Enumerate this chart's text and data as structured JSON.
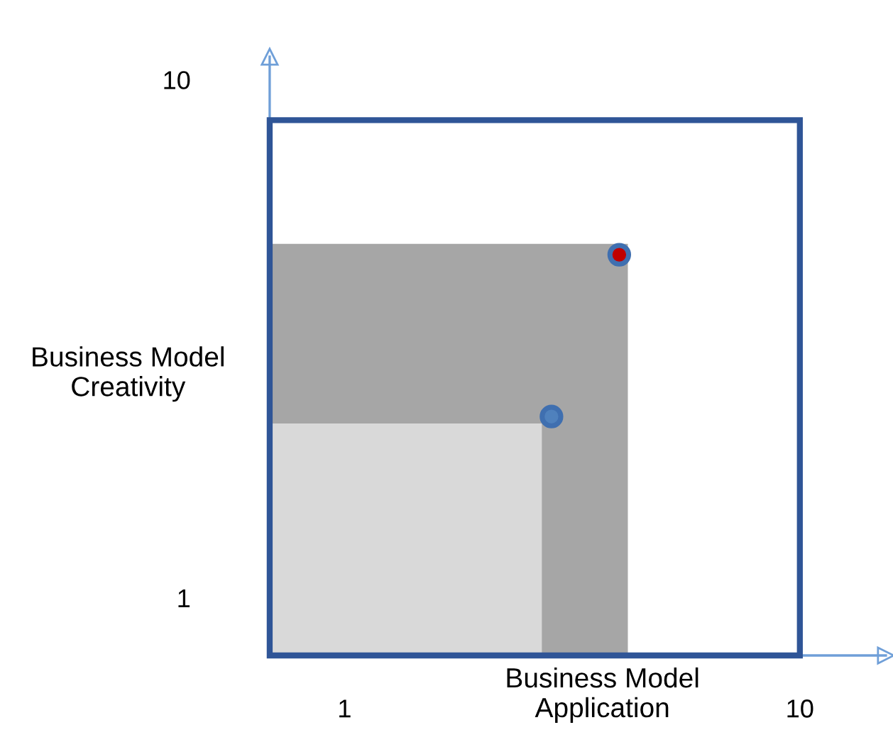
{
  "chart_data": {
    "type": "scatter",
    "xlabel": "Business Model\nApplication",
    "ylabel": "Business Model\nCreativity",
    "xlim": [
      -0.48,
      11.7
    ],
    "ylim": [
      0,
      10.4
    ],
    "xticks": [
      1,
      10
    ],
    "yticks": [
      1,
      10
    ],
    "grid": false,
    "legend": false,
    "series": [
      {
        "type": "area",
        "color": "#a6a6a6",
        "x": [
          -0.48,
          6.6
        ],
        "values": [
          7.15,
          7.15
        ]
      },
      {
        "type": "area",
        "color": "#d9d9d9",
        "x": [
          -0.48,
          4.9
        ],
        "values": [
          4.03,
          4.03
        ]
      },
      {
        "marker": "circle",
        "colors": [
          "#c00000",
          "#4f81bd"
        ],
        "x": [
          6.43,
          5.09
        ],
        "values": [
          6.96,
          4.15
        ]
      }
    ]
  }
}
